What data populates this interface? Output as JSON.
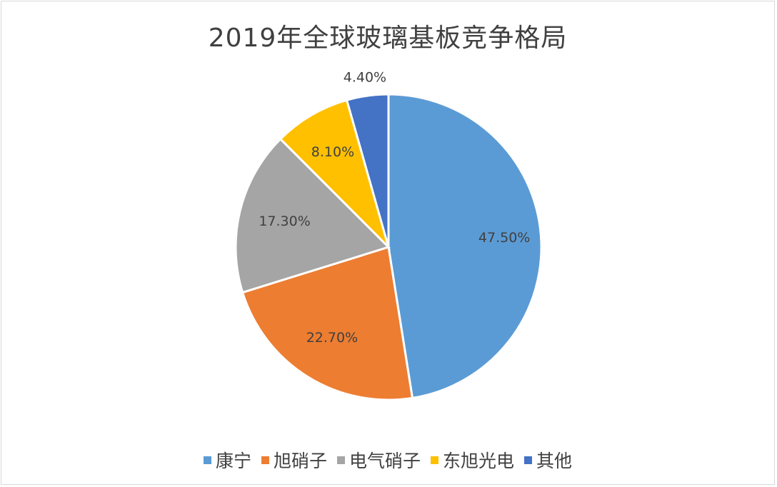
{
  "chart_data": {
    "type": "pie",
    "title": "2019年全球玻璃基板竞争格局",
    "categories": [
      "康宁",
      "旭硝子",
      "电气硝子",
      "东旭光电",
      "其他"
    ],
    "values": [
      47.5,
      22.7,
      17.3,
      8.1,
      4.4
    ],
    "data_labels": [
      "47.50%",
      "22.70%",
      "17.30%",
      "8.10%",
      "4.40%"
    ],
    "colors": [
      "#5b9bd5",
      "#ed7d31",
      "#a5a5a5",
      "#ffc000",
      "#4472c4"
    ],
    "legend_position": "bottom"
  }
}
